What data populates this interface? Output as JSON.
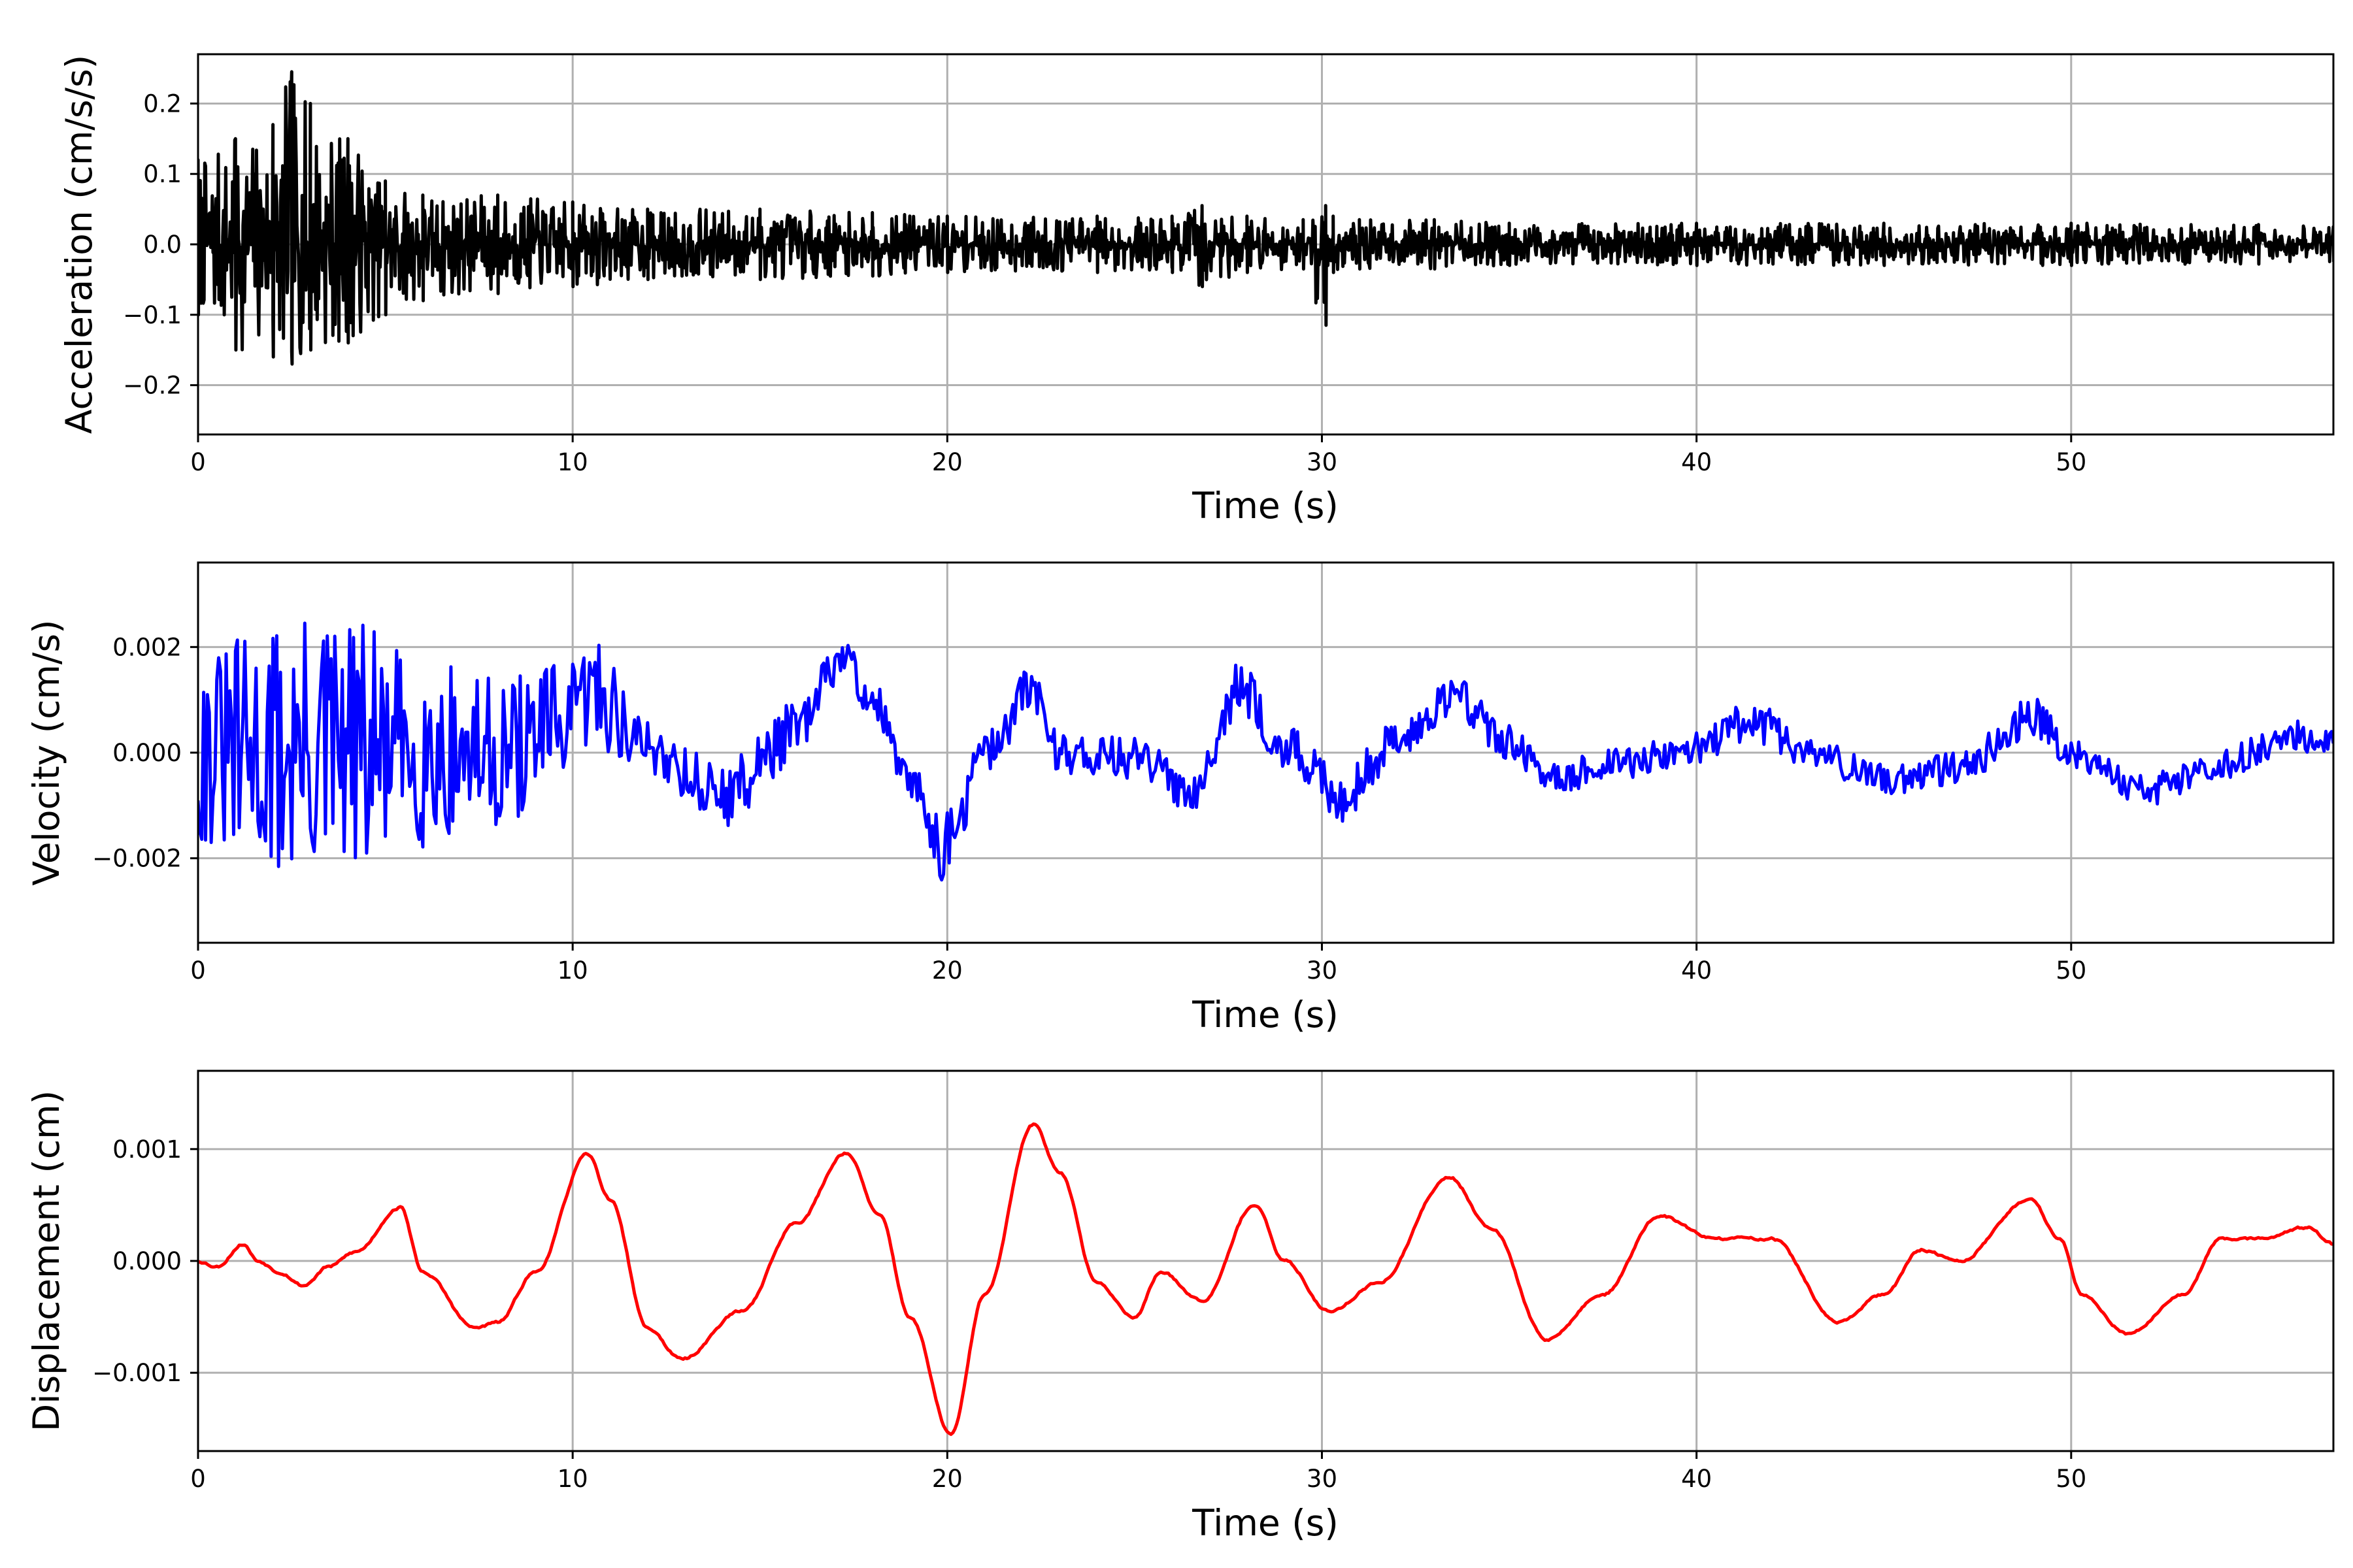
{
  "chart_data": [
    {
      "type": "line",
      "id": "acceleration",
      "xlabel": "Time (s)",
      "ylabel": "Acceleration (cm/s/s)",
      "xlim": [
        0,
        57
      ],
      "ylim": [
        -0.27,
        0.27
      ],
      "xticks": [
        0,
        10,
        20,
        30,
        40,
        50
      ],
      "xtick_labels": [
        "0",
        "10",
        "20",
        "30",
        "40",
        "50"
      ],
      "yticks": [
        -0.2,
        -0.1,
        0.0,
        0.1,
        0.2
      ],
      "ytick_labels": [
        "−0.2",
        "−0.1",
        "0.0",
        "0.1",
        "0.2"
      ],
      "grid": true,
      "series": [
        {
          "color": "#000000",
          "style": "dense-noise",
          "x": [
            0,
            1,
            2,
            2.5,
            3,
            4,
            5,
            6,
            8,
            10,
            12,
            15,
            18,
            20,
            24,
            26,
            26.8,
            28,
            29.5,
            30.1,
            30.3,
            31,
            33,
            35,
            40,
            45,
            50,
            55,
            57
          ],
          "upper": [
            0.12,
            0.15,
            0.17,
            0.245,
            0.2,
            0.15,
            0.09,
            0.07,
            0.07,
            0.06,
            0.05,
            0.05,
            0.045,
            0.04,
            0.04,
            0.04,
            0.055,
            0.04,
            0.035,
            0.055,
            0.04,
            0.035,
            0.035,
            0.03,
            0.03,
            0.03,
            0.03,
            0.028,
            0.025
          ],
          "lower": [
            -0.1,
            -0.15,
            -0.16,
            -0.17,
            -0.15,
            -0.14,
            -0.1,
            -0.08,
            -0.07,
            -0.06,
            -0.05,
            -0.05,
            -0.045,
            -0.04,
            -0.04,
            -0.04,
            -0.06,
            -0.04,
            -0.035,
            -0.115,
            -0.04,
            -0.035,
            -0.035,
            -0.03,
            -0.03,
            -0.03,
            -0.03,
            -0.028,
            -0.025
          ]
        }
      ]
    },
    {
      "type": "line",
      "id": "velocity",
      "xlabel": "Time (s)",
      "ylabel": "Velocity (cm/s)",
      "xlim": [
        0,
        57
      ],
      "ylim": [
        -0.0036,
        0.0036
      ],
      "xticks": [
        0,
        10,
        20,
        30,
        40,
        50
      ],
      "xtick_labels": [
        "0",
        "10",
        "20",
        "30",
        "40",
        "50"
      ],
      "yticks": [
        -0.002,
        0.0,
        0.002
      ],
      "ytick_labels": [
        "−0.002",
        "0.000",
        "0.002"
      ],
      "grid": true,
      "series": [
        {
          "color": "#0000ff",
          "style": "noisy-trend",
          "x": [
            0,
            2,
            4,
            6,
            8,
            10,
            10.5,
            12,
            14,
            16,
            17.2,
            18,
            19,
            20,
            21,
            22.3,
            23,
            25,
            26.5,
            27.8,
            29,
            30.5,
            32,
            33.5,
            35,
            36,
            38,
            40,
            41.5,
            43,
            45,
            47,
            49,
            50,
            52,
            54,
            56,
            57
          ],
          "y": [
            0.0,
            0.0,
            0.0,
            0.0,
            0.0,
            0.0006,
            0.0012,
            0.0001,
            -0.0008,
            0.0004,
            0.0018,
            0.001,
            -0.0006,
            -0.0018,
            0.0,
            0.0012,
            0.0,
            -0.0001,
            -0.0007,
            0.0012,
            0.0001,
            -0.0008,
            0.0002,
            0.0011,
            0.0002,
            -0.0005,
            -0.0002,
            0.0001,
            0.0006,
            0.0,
            -0.0005,
            -0.0003,
            0.0007,
            0.0,
            -0.0007,
            -0.0002,
            0.0003,
            0.0003
          ],
          "amp": [
            0.0018,
            0.0025,
            0.0026,
            0.0018,
            0.0014,
            0.0011,
            0.0011,
            0.0006,
            0.0006,
            0.0006,
            0.0004,
            0.0004,
            0.0004,
            0.0007,
            0.0004,
            0.0005,
            0.0004,
            0.0004,
            0.0004,
            0.0005,
            0.0004,
            0.0005,
            0.0004,
            0.0004,
            0.0004,
            0.0003,
            0.0003,
            0.0003,
            0.0004,
            0.0003,
            0.0003,
            0.0003,
            0.0004,
            0.0003,
            0.0003,
            0.0003,
            0.0003,
            0.0003
          ]
        }
      ]
    },
    {
      "type": "line",
      "id": "displacement",
      "xlabel": "Time (s)",
      "ylabel": "Displacement (cm)",
      "xlim": [
        0,
        57
      ],
      "ylim": [
        -0.0017,
        0.0017
      ],
      "xticks": [
        0,
        10,
        20,
        30,
        40,
        50
      ],
      "xtick_labels": [
        "0",
        "10",
        "20",
        "30",
        "40",
        "50"
      ],
      "yticks": [
        -0.001,
        0.0,
        0.001
      ],
      "ytick_labels": [
        "−0.001",
        "0.000",
        "0.001"
      ],
      "grid": true,
      "series": [
        {
          "color": "#ff0000",
          "style": "smooth",
          "x": [
            0,
            0.5,
            1.2,
            1.6,
            2.2,
            2.8,
            3.5,
            4.2,
            5.4,
            6.0,
            7.4,
            8.0,
            9.0,
            10.4,
            11.0,
            12.0,
            12.9,
            14.5,
            16.0,
            17.3,
            18.2,
            19.0,
            20.1,
            21.0,
            22.3,
            23.0,
            24.0,
            25.0,
            25.7,
            26.8,
            28.2,
            29.0,
            30.2,
            31.5,
            33.4,
            34.5,
            36.0,
            37.5,
            39.0,
            40.5,
            42.0,
            43.8,
            45.0,
            46.0,
            47.0,
            48.9,
            49.7,
            50.3,
            51.5,
            53.0,
            54.0,
            55.0,
            56.3,
            57.0
          ],
          "y": [
            0.0,
            -5e-05,
            0.00015,
            0.0,
            -0.0001,
            -0.00022,
            -5e-05,
            8e-05,
            0.00048,
            -0.0001,
            -0.0006,
            -0.00055,
            -0.0001,
            0.00095,
            0.00055,
            -0.0006,
            -0.00088,
            -0.00045,
            0.00035,
            0.00097,
            0.0004,
            -0.0005,
            -0.00155,
            -0.0003,
            0.00122,
            0.0008,
            -0.0002,
            -0.0005,
            -0.0001,
            -0.00035,
            0.0005,
            0.0,
            -0.00045,
            -0.0002,
            0.00075,
            0.0003,
            -0.0007,
            -0.0003,
            0.0004,
            0.0002,
            0.0002,
            -0.00055,
            -0.0003,
            0.0001,
            0.0,
            0.00055,
            0.0002,
            -0.0003,
            -0.00065,
            -0.0003,
            0.0002,
            0.0002,
            0.0003,
            0.00015
          ],
          "amp": 3e-05
        }
      ]
    }
  ]
}
